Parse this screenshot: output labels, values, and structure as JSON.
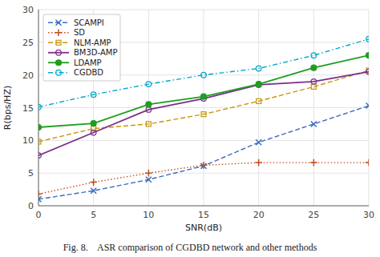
{
  "chart_data": {
    "type": "line",
    "caption": "Fig. 8.    ASR comparison of CGDBD network and other methods",
    "x_label": "SNR(dB)",
    "y_label": "R(bps/HZ)",
    "x": [
      0,
      5,
      10,
      15,
      20,
      25,
      30
    ],
    "series": [
      {
        "name": "SCAMPI",
        "color": "#3b6bbf",
        "marker": "x",
        "line_style": "dashed",
        "values": [
          1.0,
          2.3,
          4.0,
          6.1,
          9.7,
          12.5,
          15.3
        ]
      },
      {
        "name": "SD",
        "color": "#c05020",
        "marker": "plus",
        "line_style": "dotted",
        "values": [
          1.8,
          3.6,
          5.0,
          6.2,
          6.6,
          6.6,
          6.6
        ]
      },
      {
        "name": "NLM-AMP",
        "color": "#c8960a",
        "marker": "square-open",
        "line_style": "dashed",
        "values": [
          9.8,
          11.8,
          12.5,
          14.0,
          16.0,
          18.2,
          20.7
        ]
      },
      {
        "name": "BM3D-AMP",
        "color": "#7b2e8b",
        "marker": "circle-open",
        "line_style": "solid",
        "values": [
          7.7,
          11.2,
          14.7,
          16.4,
          18.5,
          19.0,
          20.5
        ]
      },
      {
        "name": "LDAMP",
        "color": "#1e9e1e",
        "marker": "circle",
        "line_style": "solid",
        "values": [
          12.0,
          12.6,
          15.5,
          16.7,
          18.6,
          21.1,
          23.0
        ]
      },
      {
        "name": "CGDBD",
        "color": "#00a8c8",
        "marker": "circle-open",
        "line_style": "dashdot",
        "values": [
          15.1,
          17.0,
          18.6,
          20.0,
          21.0,
          23.0,
          25.5
        ]
      }
    ],
    "xlim": [
      0,
      30
    ],
    "ylim": [
      0,
      30
    ],
    "xticks": [
      0,
      5,
      10,
      15,
      20,
      25,
      30
    ],
    "yticks": [
      0,
      5,
      10,
      15,
      20,
      25,
      30
    ],
    "grid": true,
    "legend": "upper-left"
  }
}
